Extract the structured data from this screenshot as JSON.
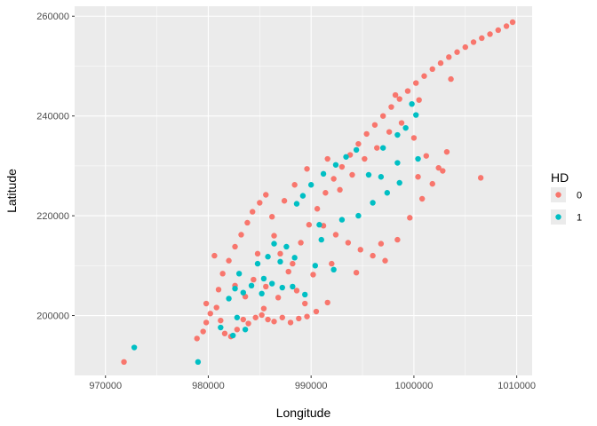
{
  "chart_data": {
    "type": "scatter",
    "xlabel": "Longitude",
    "ylabel": "Latitude",
    "xlim": [
      967000,
      1011500
    ],
    "ylim": [
      188000,
      262000
    ],
    "x_ticks": [
      970000,
      980000,
      990000,
      1000000,
      1010000
    ],
    "x_tick_labels": [
      "970000",
      "980000",
      "990000",
      "1000000",
      "1010000"
    ],
    "y_ticks": [
      200000,
      220000,
      240000,
      260000
    ],
    "y_tick_labels": [
      "200000",
      "220000",
      "240000",
      "260000"
    ],
    "grid": true,
    "legend": {
      "title": "HD",
      "placement": "right",
      "entries": [
        {
          "label": "0",
          "color": "#F8766D"
        },
        {
          "label": "1",
          "color": "#00BFC4"
        }
      ]
    },
    "series": [
      {
        "name": "0",
        "color": "#F8766D",
        "points": [
          [
            971800,
            190700
          ],
          [
            978900,
            195400
          ],
          [
            979500,
            196800
          ],
          [
            979800,
            198600
          ],
          [
            980200,
            200400
          ],
          [
            980800,
            201600
          ],
          [
            981200,
            199000
          ],
          [
            981600,
            196400
          ],
          [
            982200,
            195800
          ],
          [
            982800,
            197200
          ],
          [
            983400,
            199200
          ],
          [
            983900,
            198400
          ],
          [
            984600,
            199600
          ],
          [
            985200,
            200100
          ],
          [
            985800,
            199200
          ],
          [
            986400,
            198800
          ],
          [
            987200,
            199600
          ],
          [
            988000,
            198600
          ],
          [
            988800,
            199400
          ],
          [
            989600,
            199800
          ],
          [
            990500,
            200800
          ],
          [
            991600,
            202600
          ],
          [
            981000,
            205200
          ],
          [
            981400,
            208400
          ],
          [
            982000,
            211000
          ],
          [
            982600,
            213800
          ],
          [
            983200,
            216200
          ],
          [
            983800,
            218600
          ],
          [
            984300,
            220800
          ],
          [
            985000,
            222600
          ],
          [
            985600,
            224200
          ],
          [
            986400,
            216000
          ],
          [
            987000,
            212400
          ],
          [
            987800,
            208800
          ],
          [
            988600,
            205000
          ],
          [
            989400,
            202400
          ],
          [
            984400,
            207200
          ],
          [
            985600,
            205800
          ],
          [
            986800,
            203600
          ],
          [
            988200,
            210400
          ],
          [
            989000,
            214600
          ],
          [
            989800,
            218200
          ],
          [
            990600,
            221400
          ],
          [
            991400,
            224600
          ],
          [
            992200,
            227400
          ],
          [
            993000,
            229800
          ],
          [
            993800,
            232200
          ],
          [
            994600,
            234400
          ],
          [
            995400,
            236400
          ],
          [
            996200,
            238200
          ],
          [
            997000,
            240000
          ],
          [
            997800,
            241800
          ],
          [
            998600,
            243400
          ],
          [
            999400,
            245000
          ],
          [
            1000200,
            246600
          ],
          [
            1001000,
            248000
          ],
          [
            1001800,
            249400
          ],
          [
            1002600,
            250600
          ],
          [
            1003400,
            251800
          ],
          [
            1004200,
            252800
          ],
          [
            1005000,
            253800
          ],
          [
            1005800,
            254800
          ],
          [
            1006600,
            255600
          ],
          [
            1007400,
            256400
          ],
          [
            1008200,
            257200
          ],
          [
            1009000,
            258000
          ],
          [
            1009600,
            258800
          ],
          [
            991200,
            218000
          ],
          [
            992400,
            216200
          ],
          [
            993600,
            214600
          ],
          [
            994800,
            213200
          ],
          [
            996000,
            212000
          ],
          [
            997200,
            211000
          ],
          [
            998400,
            215200
          ],
          [
            999600,
            219600
          ],
          [
            1000800,
            223400
          ],
          [
            1001800,
            226400
          ],
          [
            1002400,
            229600
          ],
          [
            1003200,
            232800
          ],
          [
            1002800,
            229000
          ],
          [
            1001200,
            232000
          ],
          [
            1000000,
            235600
          ],
          [
            998800,
            238600
          ],
          [
            997600,
            236800
          ],
          [
            996400,
            233600
          ],
          [
            995200,
            231400
          ],
          [
            994000,
            228200
          ],
          [
            992800,
            225200
          ],
          [
            983600,
            203800
          ],
          [
            982600,
            206000
          ],
          [
            984800,
            212400
          ],
          [
            986200,
            219800
          ],
          [
            987400,
            223000
          ],
          [
            988400,
            226200
          ],
          [
            989600,
            229400
          ],
          [
            991600,
            231400
          ],
          [
            980600,
            212000
          ],
          [
            979800,
            202400
          ],
          [
            1006500,
            227600
          ],
          [
            985400,
            201400
          ],
          [
            990200,
            208200
          ],
          [
            992000,
            210400
          ],
          [
            994400,
            208600
          ],
          [
            996800,
            214400
          ],
          [
            1000400,
            227800
          ],
          [
            1003600,
            247400
          ],
          [
            1000500,
            243200
          ],
          [
            998200,
            244200
          ]
        ]
      },
      {
        "name": "1",
        "color": "#00BFC4",
        "points": [
          [
            972800,
            193600
          ],
          [
            979000,
            190700
          ],
          [
            981200,
            197600
          ],
          [
            982400,
            196000
          ],
          [
            983600,
            197200
          ],
          [
            982000,
            203400
          ],
          [
            982600,
            205400
          ],
          [
            983400,
            204600
          ],
          [
            984200,
            206000
          ],
          [
            985200,
            204400
          ],
          [
            986200,
            206400
          ],
          [
            987200,
            205600
          ],
          [
            988200,
            205800
          ],
          [
            989400,
            204200
          ],
          [
            984800,
            210400
          ],
          [
            985800,
            211800
          ],
          [
            987000,
            210800
          ],
          [
            988400,
            211600
          ],
          [
            990400,
            210000
          ],
          [
            986400,
            214400
          ],
          [
            987600,
            213800
          ],
          [
            990000,
            226200
          ],
          [
            991200,
            228400
          ],
          [
            992400,
            230200
          ],
          [
            993400,
            231800
          ],
          [
            994400,
            233200
          ],
          [
            989200,
            224000
          ],
          [
            988600,
            222400
          ],
          [
            991000,
            215200
          ],
          [
            993000,
            219200
          ],
          [
            994600,
            220000
          ],
          [
            996000,
            222600
          ],
          [
            997400,
            224600
          ],
          [
            998600,
            226600
          ],
          [
            996800,
            227800
          ],
          [
            995600,
            228200
          ],
          [
            997000,
            233600
          ],
          [
            998400,
            236200
          ],
          [
            999200,
            237600
          ],
          [
            1000200,
            240200
          ],
          [
            999800,
            242400
          ],
          [
            1000400,
            231400
          ],
          [
            998400,
            230600
          ],
          [
            992200,
            209200
          ],
          [
            983000,
            208400
          ],
          [
            990800,
            218200
          ],
          [
            982800,
            199600
          ],
          [
            985400,
            207400
          ]
        ]
      }
    ]
  }
}
